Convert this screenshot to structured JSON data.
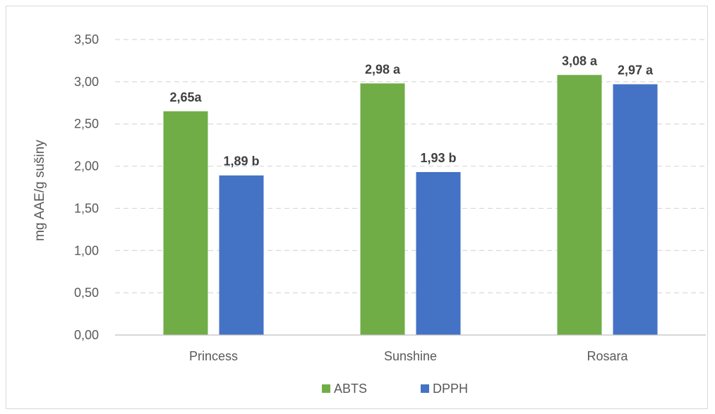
{
  "chart_data": {
    "type": "bar",
    "categories": [
      "Princess",
      "Sunshine",
      "Rosara"
    ],
    "series": [
      {
        "name": "ABTS",
        "color": "#70ad47",
        "values": [
          2.65,
          2.98,
          3.08
        ],
        "labels": [
          "2,65a",
          "2,98 a",
          "3,08 a"
        ]
      },
      {
        "name": "DPPH",
        "color": "#4472c4",
        "values": [
          1.89,
          1.93,
          2.97
        ],
        "labels": [
          "1,89 b",
          "1,93 b",
          "2,97 a"
        ]
      }
    ],
    "ylabel": "mg AAE/g sušiny",
    "ylim": [
      0,
      3.5
    ],
    "yticks": [
      "0,00",
      "0,50",
      "1,00",
      "1,50",
      "2,00",
      "2,50",
      "3,00",
      "3,50"
    ],
    "ytick_values": [
      0,
      0.5,
      1,
      1.5,
      2,
      2.5,
      3,
      3.5
    ],
    "grid": true,
    "legend_position": "bottom"
  }
}
